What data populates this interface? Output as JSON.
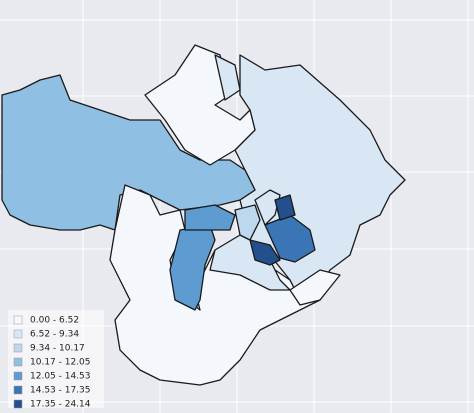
{
  "legend": {
    "items": [
      {
        "label": "0.00 - 6.52",
        "color": "#f4f8fd"
      },
      {
        "label": "6.52 - 9.34",
        "color": "#d9e7f5"
      },
      {
        "label": "9.34 - 10.17",
        "color": "#bdd7ee"
      },
      {
        "label": "10.17 - 12.05",
        "color": "#8fbfe2"
      },
      {
        "label": "12.05 - 14.53",
        "color": "#5d9bd1"
      },
      {
        "label": "14.53 - 17.35",
        "color": "#3a75b5"
      },
      {
        "label": "17.35 - 24.14",
        "color": "#234f8c"
      }
    ]
  }
}
